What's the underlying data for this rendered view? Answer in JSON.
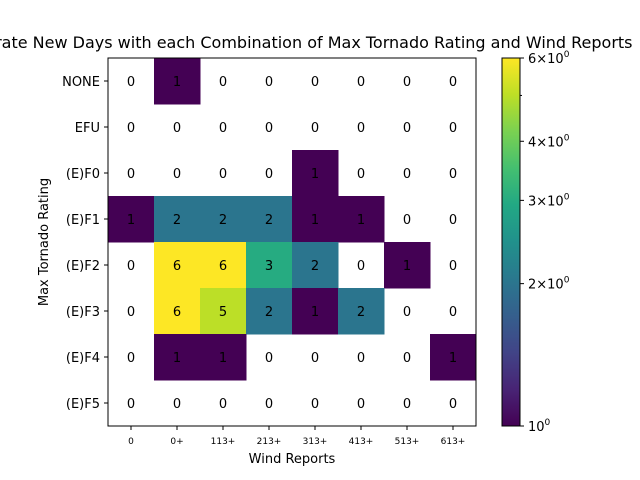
{
  "chart_data": {
    "type": "heatmap",
    "title": "Moderate New Days with each Combination of Max Tornado Rating and Wind Reports",
    "xlabel": "Wind Reports",
    "ylabel": "Max Tornado Rating",
    "x_categories": [
      "0",
      "0+",
      "113+",
      "213+",
      "313+",
      "413+",
      "513+",
      "613+"
    ],
    "y_categories": [
      "NONE",
      "EFU",
      "(E)F0",
      "(E)F1",
      "(E)F2",
      "(E)F3",
      "(E)F4",
      "(E)F5"
    ],
    "values": [
      [
        0,
        1,
        0,
        0,
        0,
        0,
        0,
        0
      ],
      [
        0,
        0,
        0,
        0,
        0,
        0,
        0,
        0
      ],
      [
        0,
        0,
        0,
        0,
        1,
        0,
        0,
        0
      ],
      [
        1,
        2,
        2,
        2,
        1,
        1,
        0,
        0
      ],
      [
        0,
        6,
        6,
        3,
        2,
        0,
        1,
        0
      ],
      [
        0,
        6,
        5,
        2,
        1,
        2,
        0,
        0
      ],
      [
        0,
        1,
        1,
        0,
        0,
        0,
        0,
        1
      ],
      [
        0,
        0,
        0,
        0,
        0,
        0,
        0,
        0
      ]
    ],
    "zero_cells_shown_as": "blank",
    "colorbar": {
      "scale": "log",
      "colormap": "viridis",
      "range": [
        1,
        6
      ],
      "tick_values": [
        1,
        2,
        3,
        4,
        6
      ],
      "tick_labels": [
        "10^0",
        "2×10^0",
        "3×10^0",
        "4×10^0",
        "6×10^0"
      ]
    }
  }
}
